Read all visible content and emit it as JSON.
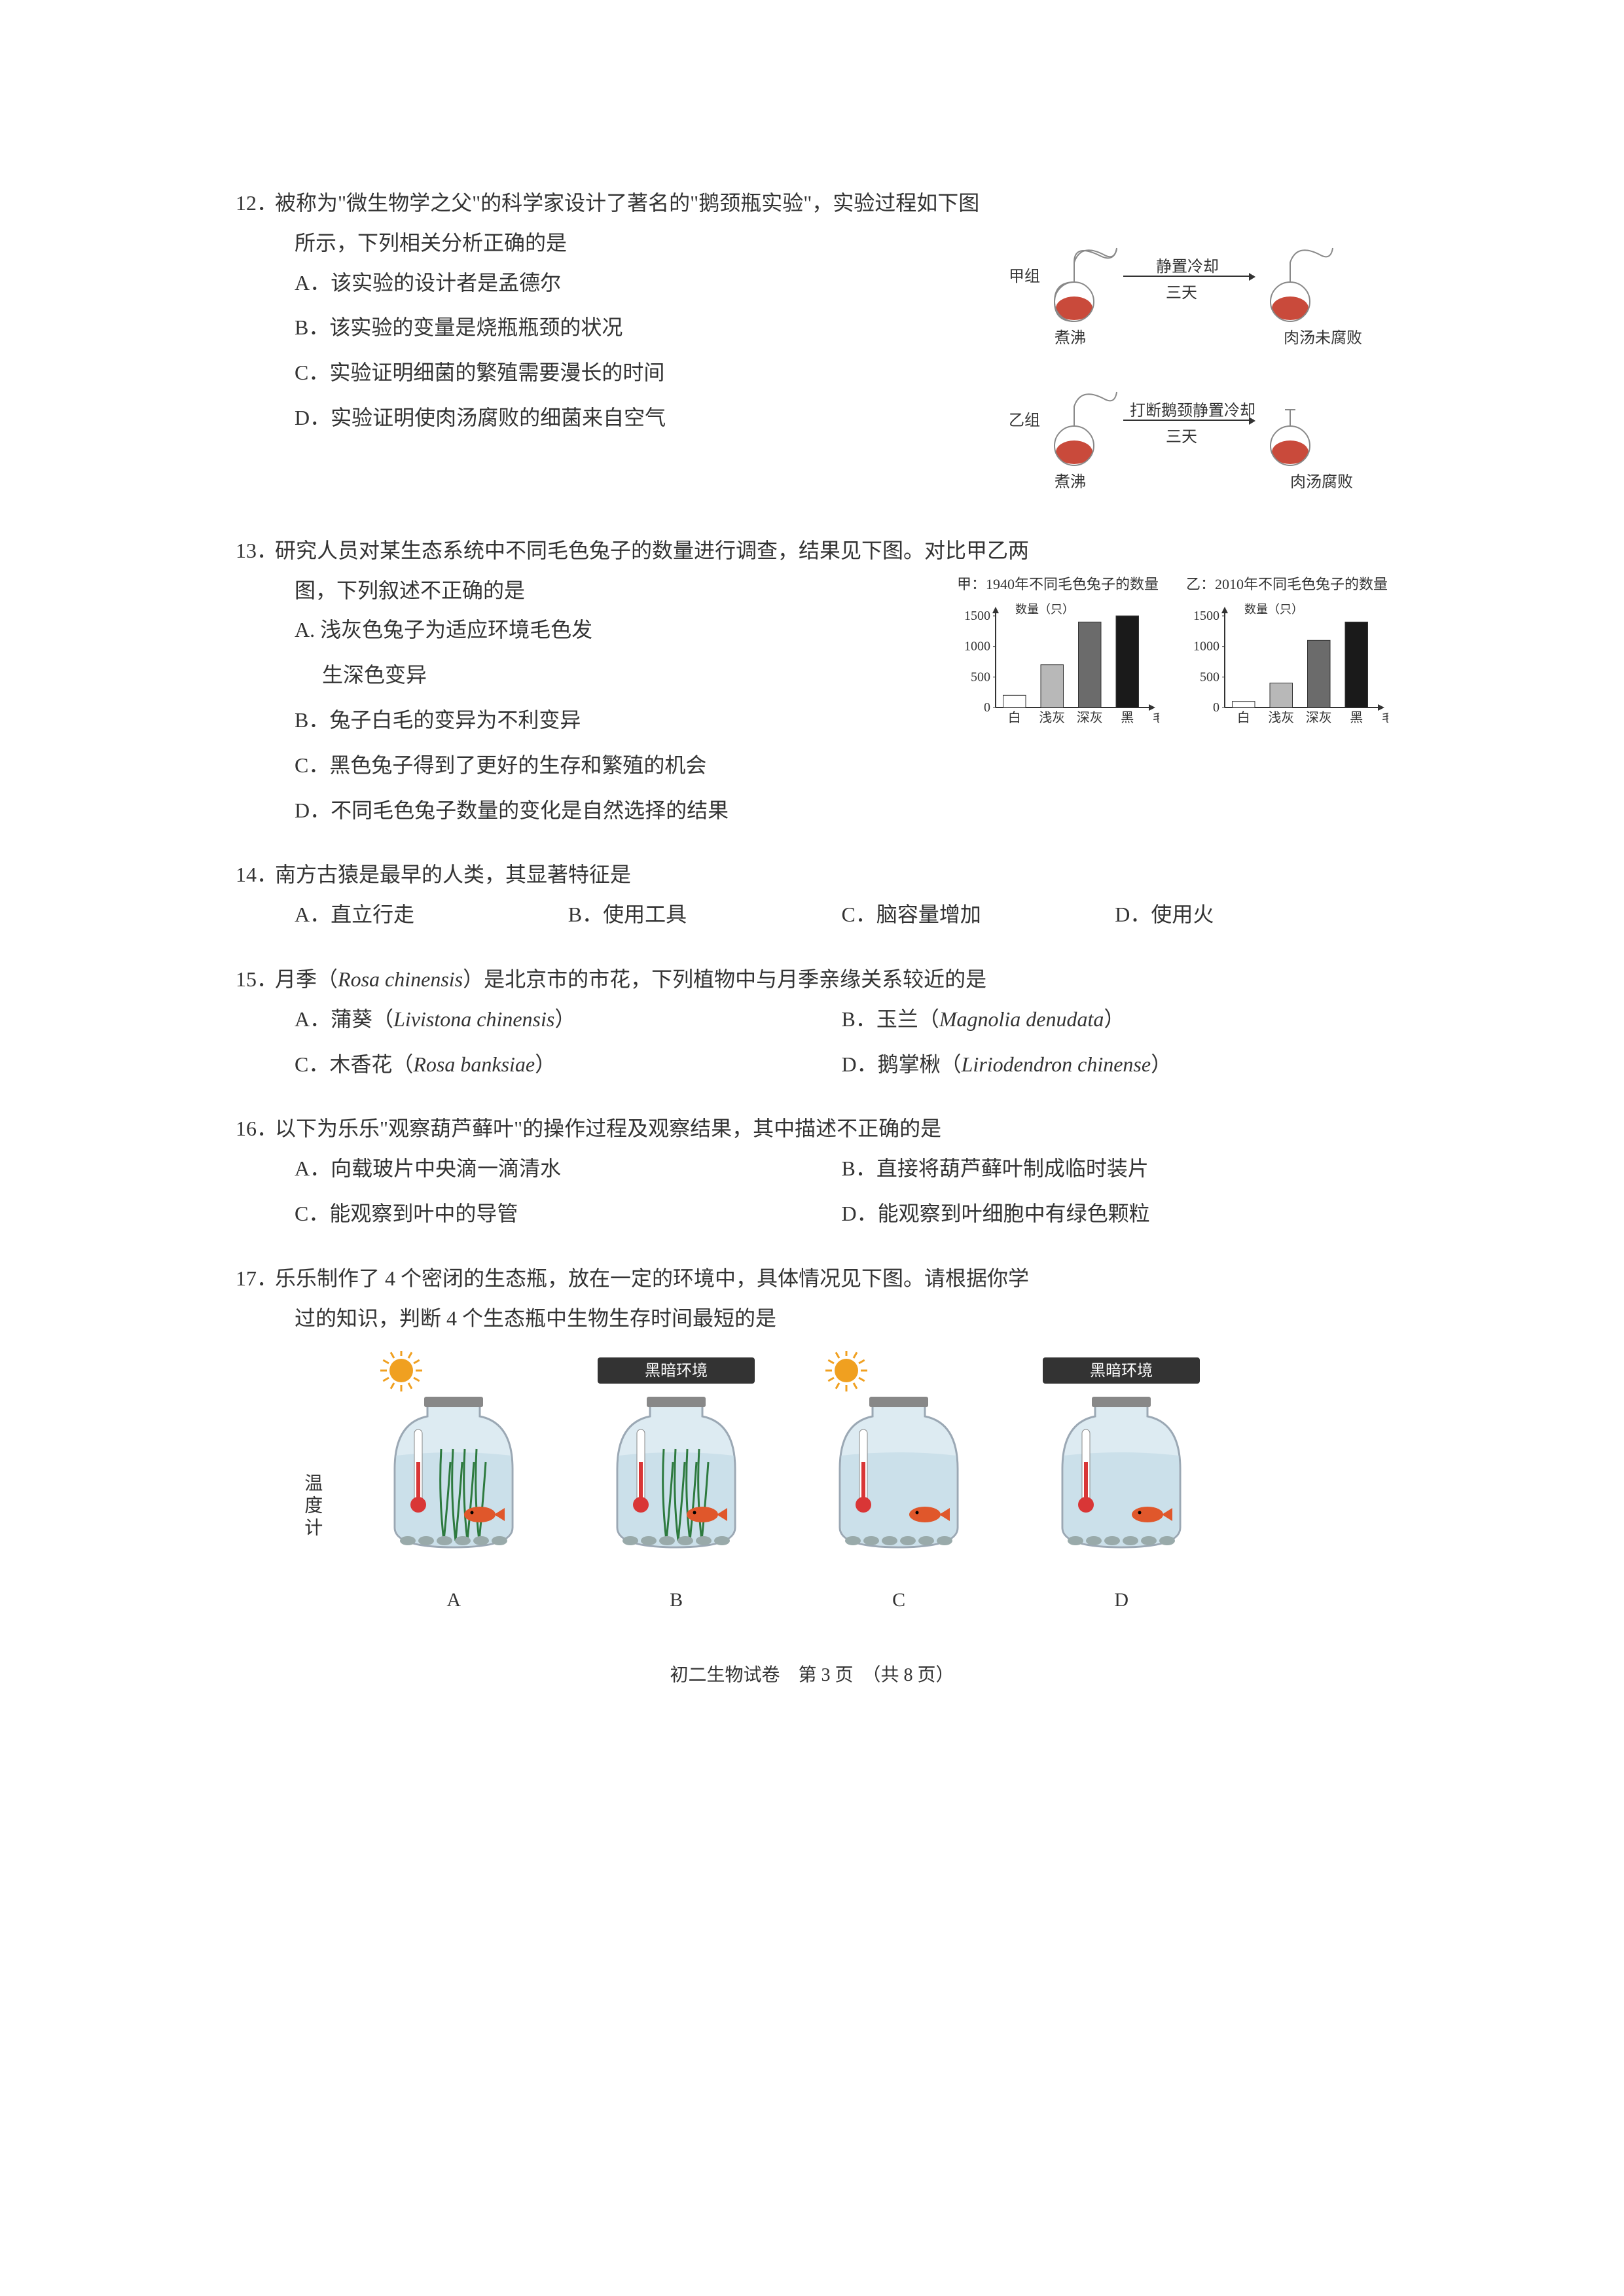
{
  "footer": "初二生物试卷　第 3 页　（共 8 页）",
  "q12": {
    "num": "12．",
    "stem": "被称为\"微生物学之父\"的科学家设计了著名的\"鹅颈瓶实验\"，实验过程如下图",
    "stem2": "所示，下列相关分析正确的是",
    "A": "A．该实验的设计者是孟德尔",
    "B": "B．该实验的变量是烧瓶瓶颈的状况",
    "C": "C．实验证明细菌的繁殖需要漫长的时间",
    "D": "D．实验证明使肉汤腐败的细菌来自空气",
    "diagram": {
      "group1": "甲组",
      "group2": "乙组",
      "boil": "煮沸",
      "cool1": "静置冷却",
      "cool2_top": "打断鹅颈静置冷却",
      "days": "三天",
      "result1": "肉汤未腐败",
      "result2": "肉汤腐败",
      "liquid_color": "#c94a3b",
      "flask_stroke": "#888888"
    }
  },
  "q13": {
    "num": "13．",
    "stem": "研究人员对某生态系统中不同毛色兔子的数量进行调查，结果见下图。对比甲乙两",
    "stem2": "图，下列叙述不正确的是",
    "A_1": "A. 浅灰色兔子为适应环境毛色发",
    "A_2": "生深色变异",
    "B": "B．兔子白毛的变异为不利变异",
    "C": "C．黑色兔子得到了更好的生存和繁殖的机会",
    "D": "D．不同毛色兔子数量的变化是自然选择的结果",
    "charts": {
      "title1": "甲：1940年不同毛色兔子的数量",
      "title2": "乙：2010年不同毛色兔子的数量",
      "ylabel": "数量（只）",
      "xlabel": "毛色",
      "ymax": 1500,
      "yticks": [
        0,
        500,
        1000,
        1500
      ],
      "categories": [
        "白",
        "浅灰",
        "深灰",
        "黑"
      ],
      "values1": [
        200,
        700,
        1400,
        1500
      ],
      "values2": [
        100,
        400,
        1100,
        1400
      ],
      "colors": [
        "#ffffff",
        "#b8b8b8",
        "#6b6b6b",
        "#1a1a1a"
      ],
      "axis_color": "#333333",
      "tick_fontsize": 20
    }
  },
  "q14": {
    "num": "14．",
    "stem": "南方古猿是最早的人类，其显著特征是",
    "A": "A．直立行走",
    "B": "B．使用工具",
    "C": "C．脑容量增加",
    "D": "D．使用火"
  },
  "q15": {
    "num": "15．",
    "stem_1": "月季（",
    "stem_i": "Rosa chinensis",
    "stem_2": "）是北京市的市花，下列植物中与月季亲缘关系较近的是",
    "A_1": "A．蒲葵（",
    "A_i": "Livistona chinensis",
    "A_2": "）",
    "B_1": "B．玉兰（",
    "B_i": "Magnolia denudata",
    "B_2": "）",
    "C_1": "C．木香花（",
    "C_i": "Rosa banksiae",
    "C_2": "）",
    "D_1": "D．鹅掌楸（",
    "D_i": "Liriodendron chinense",
    "D_2": "）"
  },
  "q16": {
    "num": "16．",
    "stem": "以下为乐乐\"观察葫芦藓叶\"的操作过程及观察结果，其中描述不正确的是",
    "A": "A．向载玻片中央滴一滴清水",
    "B": "B．直接将葫芦藓叶制成临时装片",
    "C": "C．能观察到叶中的导管",
    "D": "D．能观察到叶细胞中有绿色颗粒"
  },
  "q17": {
    "num": "17．",
    "stem": "乐乐制作了 4 个密闭的生态瓶，放在一定的环境中，具体情况见下图。请根据你学",
    "stem2": "过的知识，判断 4 个生态瓶中生物生存时间最短的是",
    "temp_label": "温度计",
    "dark_env": "黑暗环境",
    "jars": {
      "labels": [
        "A",
        "B",
        "C",
        "D"
      ],
      "jar_stroke": "#8a9aa8",
      "jar_fill": "#d8e8f0",
      "water_fill": "#bfd8e5",
      "plant_color": "#2d7a3e",
      "fish_color": "#e0572b",
      "thermo_red": "#d93636",
      "sun_color": "#f0a020",
      "has_plant": [
        true,
        true,
        false,
        false
      ],
      "has_sun": [
        true,
        false,
        true,
        false
      ]
    }
  }
}
